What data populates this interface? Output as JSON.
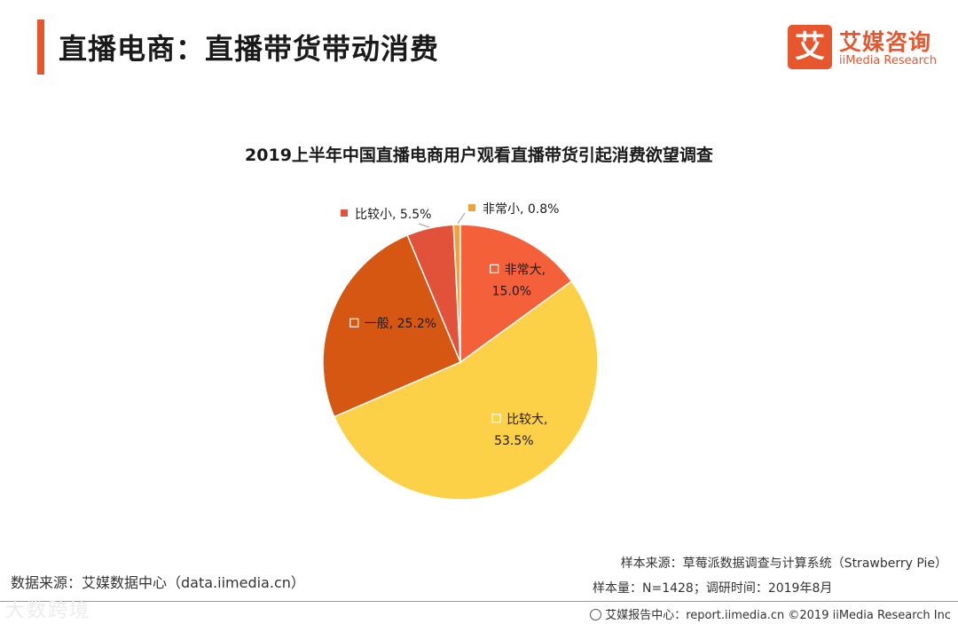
{
  "header": {
    "title": "直播电商：直播带货带动消费",
    "brand_mark": "艾",
    "brand_cn": "艾媒咨询",
    "brand_en": "iiMedia Research",
    "accent_color": "#e8562e"
  },
  "chart_data": {
    "type": "pie",
    "title": "2019上半年中国直播电商用户观看直播带货引起消费欲望调查",
    "categories": [
      "非常大",
      "比较大",
      "一般",
      "比较小",
      "非常小"
    ],
    "values": [
      15.0,
      53.5,
      25.2,
      5.5,
      0.8
    ],
    "labels": [
      "非常大,\n15.0%",
      "比较大,\n53.5%",
      "一般, 25.2%",
      "比较小, 5.5%",
      "非常小, 0.8%"
    ],
    "colors": [
      "#f4603a",
      "#fdd147",
      "#d55712",
      "#e2513a",
      "#f2a23a"
    ],
    "start_position": "12 o'clock",
    "direction": "clockwise"
  },
  "footer": {
    "source": "数据来源：艾媒数据中心（data.iimedia.cn）",
    "sample_source": "样本来源：草莓派数据调查与计算系统（Strawberry Pie）",
    "sample_size": "样本量：N=1428；调研时间：2019年8月",
    "report_center": "艾媒报告中心：report.iimedia.cn ©2019 iiMedia Research Inc",
    "watermark": "大数跨境"
  }
}
